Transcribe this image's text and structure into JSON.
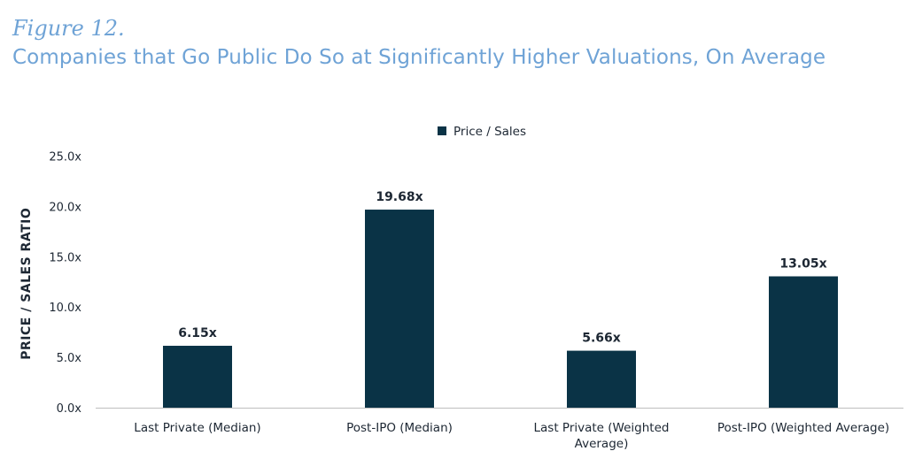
{
  "figure_label": "Figure 12.",
  "chart_data": {
    "type": "bar",
    "title": "Companies that Go Public Do So at Significantly Higher Valuations, On Average",
    "categories": [
      [
        "Last Private (Median)"
      ],
      [
        "Post-IPO (Median)"
      ],
      [
        "Last Private (Weighted",
        "Average)"
      ],
      [
        "Post-IPO (Weighted Average)"
      ]
    ],
    "series": [
      {
        "name": "Price / Sales",
        "values": [
          6.15,
          19.68,
          5.66,
          13.05
        ],
        "labels": [
          "6.15x",
          "19.68x",
          "5.66x",
          "13.05x"
        ],
        "color": "#0a3346"
      }
    ],
    "ylabel": "PRICE / SALES RATIO",
    "xlabel": "",
    "ylim": [
      0,
      25
    ],
    "yticks": [
      0,
      5,
      10,
      15,
      20,
      25
    ],
    "ytick_labels": [
      "0.0x",
      "5.0x",
      "10.0x",
      "15.0x",
      "20.0x",
      "25.0x"
    ],
    "legend_position": "top-center",
    "grid": false
  },
  "colors": {
    "title": "#6fa3d6",
    "bar": "#0a3346",
    "text": "#1d2733",
    "axis": "#bfbfbf"
  }
}
